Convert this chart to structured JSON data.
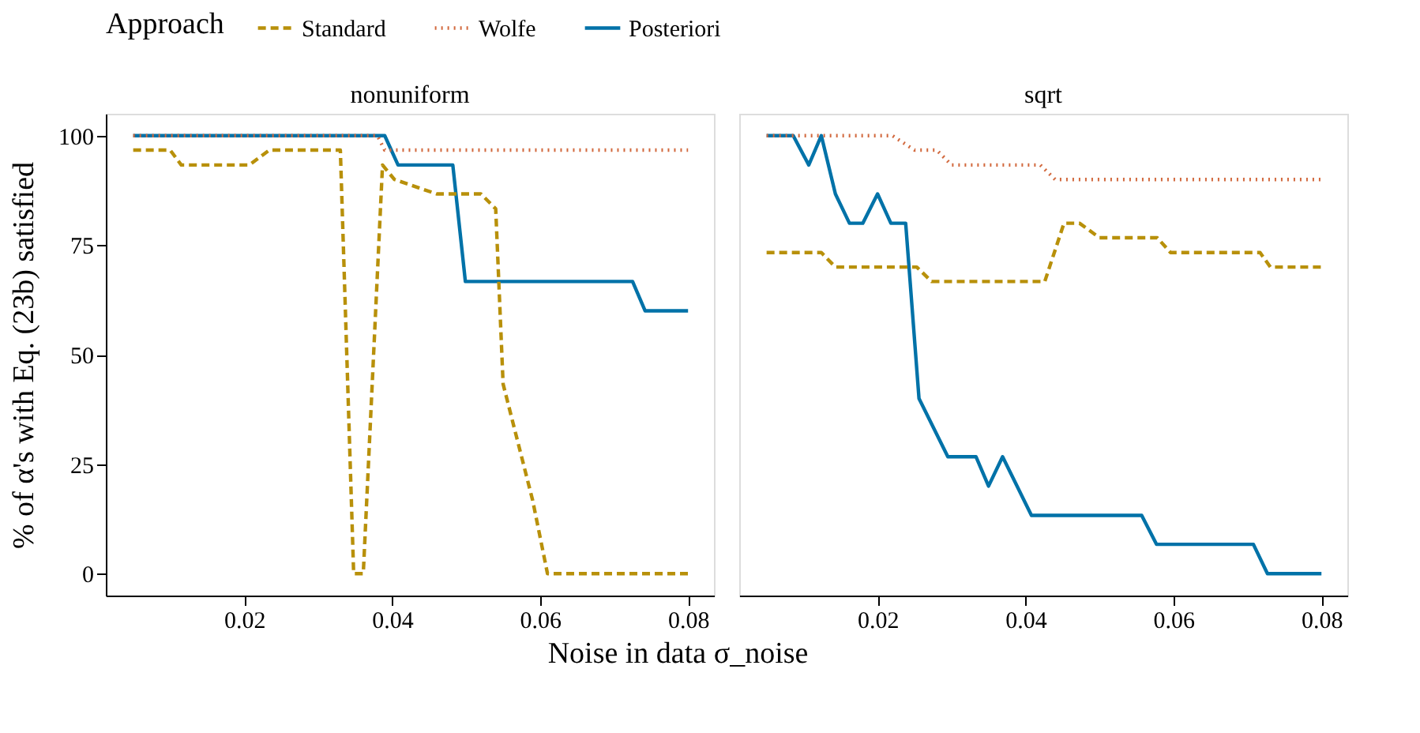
{
  "chart_data": [
    {
      "type": "line",
      "title": "nonuniform",
      "xlabel": "Noise in data σ_noise",
      "ylabel": "% of α's with Eq. (23b) satisfied",
      "legend_title": "Approach",
      "legend": "top",
      "xlim": [
        0.0013,
        0.0835
      ],
      "ylim": [
        -5,
        105
      ],
      "xticks": [
        0.02,
        0.04,
        0.06,
        0.08
      ],
      "yticks": [
        0,
        25,
        50,
        75,
        100
      ],
      "grid": false,
      "series": [
        {
          "name": "Standard",
          "color": "#b8900a",
          "line_style": "dashed",
          "x": [
            0.005,
            0.01,
            0.0115,
            0.0207,
            0.0234,
            0.033,
            0.0348,
            0.0361,
            0.0387,
            0.0403,
            0.046,
            0.052,
            0.054,
            0.055,
            0.057,
            0.059,
            0.061,
            0.08
          ],
          "values": [
            96.7,
            96.7,
            93.3,
            93.3,
            96.7,
            96.7,
            0,
            0,
            93.3,
            90,
            86.7,
            86.7,
            83.3,
            43.3,
            30,
            16.7,
            0,
            0
          ]
        },
        {
          "name": "Wolfe",
          "color": "#d2693e",
          "line_style": "dotted",
          "x": [
            0.005,
            0.038,
            0.039,
            0.08
          ],
          "values": [
            100,
            100,
            96.7,
            96.7
          ]
        },
        {
          "name": "Posteriori",
          "color": "#0072a8",
          "line_style": "solid",
          "x": [
            0.005,
            0.039,
            0.0408,
            0.0482,
            0.0499,
            0.0725,
            0.0742,
            0.08
          ],
          "values": [
            100,
            100,
            93.3,
            93.3,
            66.7,
            66.7,
            60,
            60
          ]
        }
      ]
    },
    {
      "type": "line",
      "title": "sqrt",
      "tick_labels": "x",
      "xlim": [
        0.0013,
        0.0835
      ],
      "ylim": [
        -5,
        105
      ],
      "xticks": [
        0.02,
        0.04,
        0.06,
        0.08
      ],
      "yticks": [
        0,
        25,
        50,
        75,
        100
      ],
      "grid": false,
      "series": [
        {
          "name": "Standard",
          "color": "#b8900a",
          "line_style": "dashed",
          "x": [
            0.005,
            0.0124,
            0.0143,
            0.0253,
            0.0273,
            0.0426,
            0.0452,
            0.0473,
            0.05,
            0.0578,
            0.0596,
            0.0717,
            0.0731,
            0.08
          ],
          "values": [
            73.3,
            73.3,
            70,
            70,
            66.7,
            66.7,
            80,
            80,
            76.7,
            76.7,
            73.3,
            73.3,
            70,
            70
          ]
        },
        {
          "name": "Wolfe",
          "color": "#d2693e",
          "line_style": "dotted",
          "x": [
            0.005,
            0.022,
            0.025,
            0.028,
            0.03,
            0.042,
            0.044,
            0.08
          ],
          "values": [
            100,
            100,
            96.7,
            96.7,
            93.3,
            93.3,
            90,
            90
          ]
        },
        {
          "name": "Posteriori",
          "color": "#0072a8",
          "line_style": "solid",
          "x": [
            0.005,
            0.0086,
            0.0107,
            0.0124,
            0.0143,
            0.0162,
            0.018,
            0.02,
            0.0218,
            0.0238,
            0.0256,
            0.0295,
            0.0333,
            0.035,
            0.0369,
            0.0408,
            0.0557,
            0.0577,
            0.0708,
            0.0727,
            0.08
          ],
          "values": [
            100,
            100,
            93.3,
            100,
            86.7,
            80,
            80,
            86.7,
            80,
            80,
            40,
            26.7,
            26.7,
            20,
            26.7,
            13.3,
            13.3,
            6.7,
            6.7,
            0,
            0
          ]
        }
      ]
    }
  ]
}
